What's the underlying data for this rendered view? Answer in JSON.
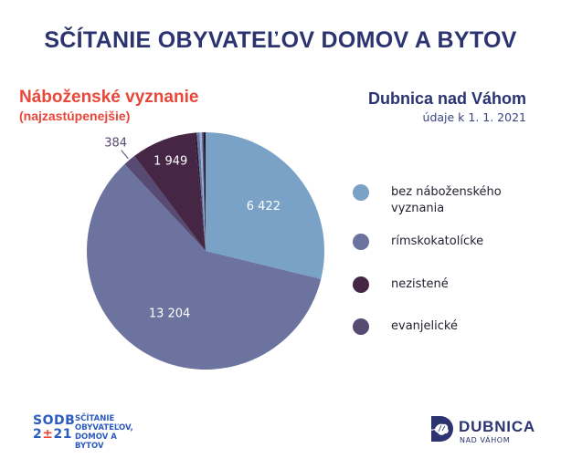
{
  "header": {
    "title": "SČÍTANIE OBYVATEĽOV DOMOV A BYTOV",
    "subtitle": "Náboženské vyznanie",
    "subtitle_note": "(najzastúpenejšie)",
    "city": "Dubnica nad Váhom",
    "date": "údaje k 1. 1. 2021"
  },
  "chart_data": {
    "type": "pie",
    "title": "Náboženské vyznanie (najzastúpenejšie)",
    "start_angle_deg": 0,
    "direction": "clockwise",
    "slices": [
      {
        "label": "bez náboženského vyznania",
        "value": 6422,
        "display": "6 422",
        "color": "#7aa1c6"
      },
      {
        "label": "rímskokatolícke",
        "value": 13204,
        "display": "13 204",
        "color": "#6b739e"
      },
      {
        "label": "evanjelické",
        "value": 384,
        "display": "384",
        "color": "#574a73"
      },
      {
        "label": "nezistené",
        "value": 1949,
        "display": "1 949",
        "color": "#452645"
      },
      {
        "label": "",
        "value": 60,
        "display": "",
        "color": "#2a1530"
      },
      {
        "label": "",
        "value": 90,
        "display": "",
        "color": "#6b739e"
      },
      {
        "label": "",
        "value": 70,
        "display": "",
        "color": "#8eb3d8"
      },
      {
        "label": "",
        "value": 50,
        "display": "",
        "color": "#574a73"
      },
      {
        "label": "",
        "value": 60,
        "display": "",
        "color": "#2a1530"
      }
    ],
    "legend_position": "right"
  },
  "legend": {
    "items": [
      {
        "label": "bez náboženského\nvyznania",
        "color": "#7aa1c6"
      },
      {
        "label": "rímskokatolícke",
        "color": "#6b739e"
      },
      {
        "label": "nezistené",
        "color": "#452645"
      },
      {
        "label": "evanjelické",
        "color": "#574a73"
      }
    ]
  },
  "footer": {
    "sodb_line1": "SODB",
    "sodb_line2_a": "2",
    "sodb_line2_b": "±",
    "sodb_line2_c": "21",
    "sodb_text": "SČÍTANIE\nOBYVATEĽOV,\nDOMOV A BYTOV",
    "dubnica_name": "DUBNICA",
    "dubnica_sub": "NAD VÁHOM"
  },
  "colors": {
    "title": "#2b3370",
    "accent_red": "#e8473a",
    "sodb_blue": "#2b5bbf"
  }
}
